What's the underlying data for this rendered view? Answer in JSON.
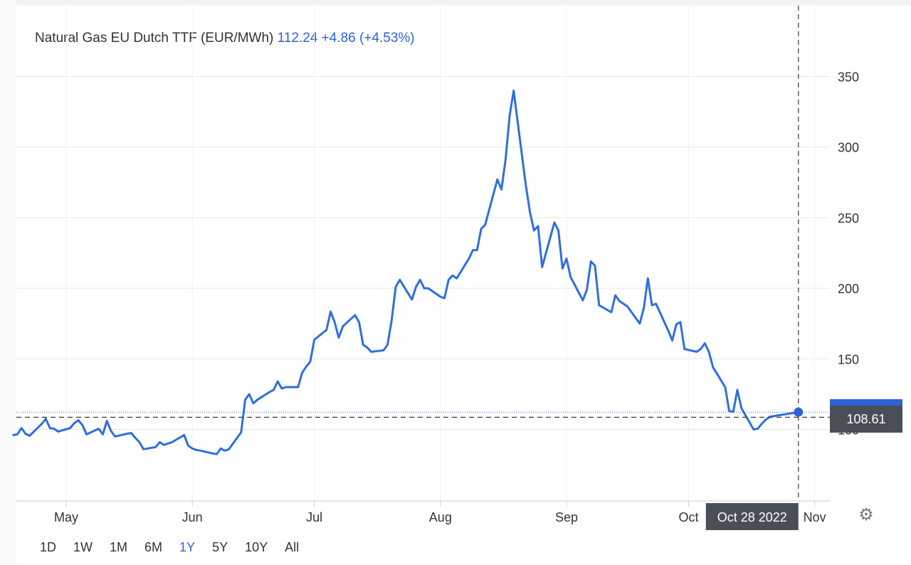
{
  "header": {
    "instrument": "Natural Gas EU Dutch TTF (EUR/MWh)",
    "price": "112.24",
    "change": "+4.86 (+4.53%)"
  },
  "ui": {
    "settings_icon": "gear-icon",
    "ranges": [
      "1D",
      "1W",
      "1M",
      "6M",
      "1Y",
      "5Y",
      "10Y",
      "All"
    ],
    "active_range": "1Y"
  },
  "colors": {
    "line": "#2f6ee0",
    "accent": "#2e63d8",
    "grid": "#e6e6e6",
    "crosshair": "#444444",
    "label_bg": "#4a4f57"
  },
  "chart_data": {
    "type": "line",
    "title": "Natural Gas EU Dutch TTF (EUR/MWh)",
    "ylim": [
      0,
      395
    ],
    "y_ticks": [
      100,
      150,
      200,
      250,
      300,
      350
    ],
    "x_tick_labels": [
      "May",
      "Jun",
      "Jul",
      "Aug",
      "Sep",
      "Oct",
      "Nov"
    ],
    "x_tick_dates": [
      "2022-05-01",
      "2022-06-01",
      "2022-07-01",
      "2022-08-01",
      "2022-09-01",
      "2022-10-01",
      "2022-11-01"
    ],
    "grid": true,
    "crosshair": {
      "date": "Oct 28 2022",
      "value": "108.61",
      "x_date": "2022-10-28",
      "y": 108.61
    },
    "last_value_marker": {
      "x": "2022-10-28",
      "y": 112.24
    },
    "series": [
      {
        "name": "Natural Gas EU Dutch TTF (EUR/MWh)",
        "points": [
          [
            "2022-04-18",
            96
          ],
          [
            "2022-04-19",
            96.5
          ],
          [
            "2022-04-20",
            101
          ],
          [
            "2022-04-21",
            97
          ],
          [
            "2022-04-22",
            95.5
          ],
          [
            "2022-04-25",
            104
          ],
          [
            "2022-04-26",
            107.5
          ],
          [
            "2022-04-27",
            101
          ],
          [
            "2022-04-28",
            100.5
          ],
          [
            "2022-04-29",
            98.5
          ],
          [
            "2022-05-02",
            101
          ],
          [
            "2022-05-03",
            104.5
          ],
          [
            "2022-05-04",
            106.5
          ],
          [
            "2022-05-05",
            103
          ],
          [
            "2022-05-06",
            96.5
          ],
          [
            "2022-05-09",
            100.5
          ],
          [
            "2022-05-10",
            96.5
          ],
          [
            "2022-05-11",
            106
          ],
          [
            "2022-05-12",
            99
          ],
          [
            "2022-05-13",
            95
          ],
          [
            "2022-05-16",
            97
          ],
          [
            "2022-05-17",
            97.5
          ],
          [
            "2022-05-18",
            94
          ],
          [
            "2022-05-19",
            91
          ],
          [
            "2022-05-20",
            86
          ],
          [
            "2022-05-23",
            87.5
          ],
          [
            "2022-05-24",
            91
          ],
          [
            "2022-05-25",
            89
          ],
          [
            "2022-05-26",
            90
          ],
          [
            "2022-05-27",
            91
          ],
          [
            "2022-05-30",
            96
          ],
          [
            "2022-05-31",
            88.5
          ],
          [
            "2022-06-01",
            86.5
          ],
          [
            "2022-06-02",
            85.5
          ],
          [
            "2022-06-03",
            85
          ],
          [
            "2022-06-06",
            83
          ],
          [
            "2022-06-07",
            82.5
          ],
          [
            "2022-06-08",
            86.5
          ],
          [
            "2022-06-09",
            85
          ],
          [
            "2022-06-10",
            86
          ],
          [
            "2022-06-13",
            98
          ],
          [
            "2022-06-14",
            121
          ],
          [
            "2022-06-15",
            125
          ],
          [
            "2022-06-16",
            118.5
          ],
          [
            "2022-06-17",
            121
          ],
          [
            "2022-06-20",
            126.5
          ],
          [
            "2022-06-21",
            128
          ],
          [
            "2022-06-22",
            134
          ],
          [
            "2022-06-23",
            129
          ],
          [
            "2022-06-24",
            130
          ],
          [
            "2022-06-27",
            130
          ],
          [
            "2022-06-28",
            140
          ],
          [
            "2022-06-29",
            144.5
          ],
          [
            "2022-06-30",
            148
          ],
          [
            "2022-07-01",
            163.5
          ],
          [
            "2022-07-04",
            170.5
          ],
          [
            "2022-07-05",
            183.5
          ],
          [
            "2022-07-06",
            176
          ],
          [
            "2022-07-07",
            165
          ],
          [
            "2022-07-08",
            173
          ],
          [
            "2022-07-11",
            181
          ],
          [
            "2022-07-12",
            176
          ],
          [
            "2022-07-13",
            160
          ],
          [
            "2022-07-14",
            158
          ],
          [
            "2022-07-15",
            155
          ],
          [
            "2022-07-18",
            156
          ],
          [
            "2022-07-19",
            160
          ],
          [
            "2022-07-20",
            177
          ],
          [
            "2022-07-21",
            201
          ],
          [
            "2022-07-22",
            206
          ],
          [
            "2022-07-25",
            192
          ],
          [
            "2022-07-26",
            201
          ],
          [
            "2022-07-27",
            206
          ],
          [
            "2022-07-28",
            200
          ],
          [
            "2022-07-29",
            200
          ],
          [
            "2022-08-01",
            194
          ],
          [
            "2022-08-02",
            193
          ],
          [
            "2022-08-03",
            206
          ],
          [
            "2022-08-04",
            209
          ],
          [
            "2022-08-05",
            207
          ],
          [
            "2022-08-08",
            221
          ],
          [
            "2022-08-09",
            227
          ],
          [
            "2022-08-10",
            227
          ],
          [
            "2022-08-11",
            242
          ],
          [
            "2022-08-12",
            245
          ],
          [
            "2022-08-15",
            277
          ],
          [
            "2022-08-16",
            270
          ],
          [
            "2022-08-17",
            291
          ],
          [
            "2022-08-18",
            322
          ],
          [
            "2022-08-19",
            340
          ],
          [
            "2022-08-22",
            273
          ],
          [
            "2022-08-23",
            254
          ],
          [
            "2022-08-24",
            241
          ],
          [
            "2022-08-25",
            244
          ],
          [
            "2022-08-26",
            215
          ],
          [
            "2022-08-29",
            246.5
          ],
          [
            "2022-08-30",
            241
          ],
          [
            "2022-08-31",
            214
          ],
          [
            "2022-09-01",
            221
          ],
          [
            "2022-09-02",
            208
          ],
          [
            "2022-09-05",
            191.5
          ],
          [
            "2022-09-06",
            199
          ],
          [
            "2022-09-07",
            219
          ],
          [
            "2022-09-08",
            216
          ],
          [
            "2022-09-09",
            188
          ],
          [
            "2022-09-12",
            183
          ],
          [
            "2022-09-13",
            195
          ],
          [
            "2022-09-14",
            191
          ],
          [
            "2022-09-15",
            189
          ],
          [
            "2022-09-16",
            187
          ],
          [
            "2022-09-19",
            175
          ],
          [
            "2022-09-20",
            186
          ],
          [
            "2022-09-21",
            207
          ],
          [
            "2022-09-22",
            188
          ],
          [
            "2022-09-23",
            189
          ],
          [
            "2022-09-26",
            170
          ],
          [
            "2022-09-27",
            163
          ],
          [
            "2022-09-28",
            174.5
          ],
          [
            "2022-09-29",
            176
          ],
          [
            "2022-09-30",
            157
          ],
          [
            "2022-10-03",
            155
          ],
          [
            "2022-10-04",
            157
          ],
          [
            "2022-10-05",
            161
          ],
          [
            "2022-10-06",
            155
          ],
          [
            "2022-10-07",
            144
          ],
          [
            "2022-10-10",
            130
          ],
          [
            "2022-10-11",
            113
          ],
          [
            "2022-10-12",
            112.5
          ],
          [
            "2022-10-13",
            128
          ],
          [
            "2022-10-14",
            115
          ],
          [
            "2022-10-17",
            100
          ],
          [
            "2022-10-18",
            100.5
          ],
          [
            "2022-10-19",
            104
          ],
          [
            "2022-10-20",
            107
          ],
          [
            "2022-10-21",
            109
          ],
          [
            "2022-10-28",
            112.24
          ]
        ]
      }
    ]
  }
}
